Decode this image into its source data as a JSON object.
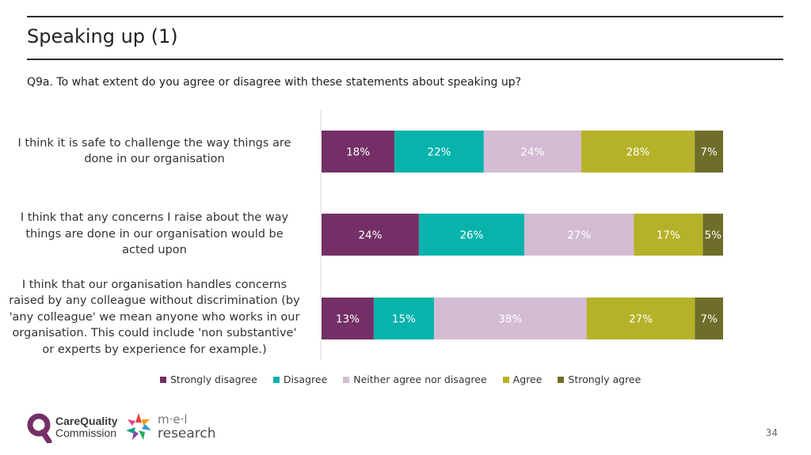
{
  "page": {
    "title": "Speaking up (1)",
    "question": "Q9a. To what extent do you agree or disagree with these statements about speaking up?",
    "page_number": "34"
  },
  "chart_data": {
    "type": "bar",
    "orientation": "horizontal",
    "stacked": true,
    "value_unit": "%",
    "categories": [
      "I think it is safe to challenge the way things are done in our organisation",
      "I think that any concerns I raise about the way things are done in our organisation would be acted upon",
      "I think that our organisation handles concerns raised by any colleague without discrimination (by 'any colleague' we mean anyone who works in our organisation. This could include 'non substantive' or experts by experience for example.)"
    ],
    "category_lines": [
      [
        "I think it is safe to challenge the way things are",
        "done in our organisation"
      ],
      [
        "I think that any concerns I raise about the way",
        "things are done in our organisation would be",
        "acted upon"
      ],
      [
        "I think that our organisation handles concerns",
        "raised by any colleague without discrimination (by",
        "'any colleague' we mean anyone who works in our",
        "organisation. This could include 'non substantive'",
        "or experts by experience for example.)"
      ]
    ],
    "series": [
      {
        "name": "Strongly disagree",
        "color": "#743066",
        "label_color": "#ffffff",
        "values": [
          18,
          24,
          13
        ]
      },
      {
        "name": "Disagree",
        "color": "#08b3ac",
        "label_color": "#ffffff",
        "values": [
          22,
          26,
          15
        ]
      },
      {
        "name": "Neither agree nor disagree",
        "color": "#d3bcd3",
        "label_color": "#ffffff",
        "values": [
          24,
          27,
          38
        ]
      },
      {
        "name": "Agree",
        "color": "#b5b229",
        "label_color": "#ffffff",
        "values": [
          28,
          17,
          27
        ]
      },
      {
        "name": "Strongly agree",
        "color": "#6e6e2a",
        "label_color": "#ffffff",
        "values": [
          7,
          5,
          7
        ]
      }
    ],
    "legend_position": "bottom"
  },
  "logos": {
    "cqc_line1": "CareQuality",
    "cqc_line2": "Commission",
    "mel_line1": "m·e·l",
    "mel_line2": "research"
  }
}
